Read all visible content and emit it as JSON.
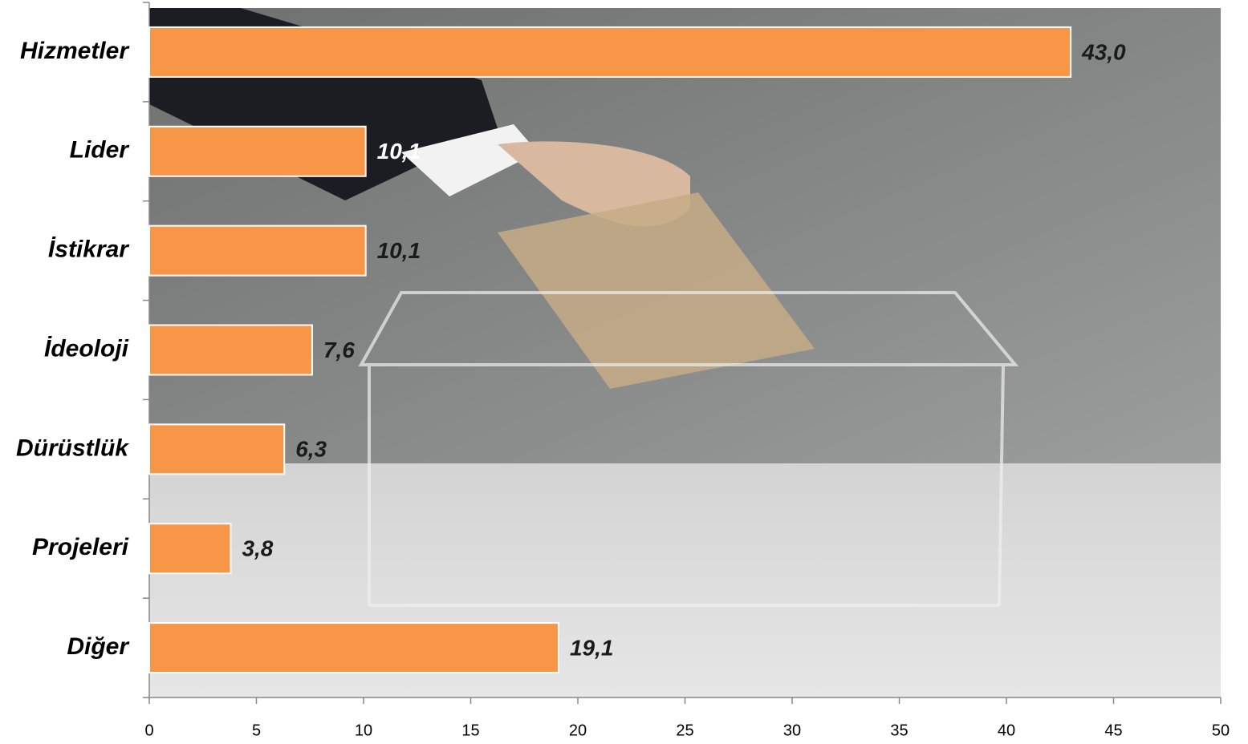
{
  "chart_data": {
    "type": "bar",
    "orientation": "horizontal",
    "categories": [
      "Hizmetler",
      "Lider",
      "İstikrar",
      "İdeoloji",
      "Dürüstlük",
      "Projeleri",
      "Diğer"
    ],
    "values": [
      43,
      10.1,
      10.1,
      7.6,
      6.3,
      3.8,
      19.1
    ],
    "value_labels": [
      "43,0",
      "10,1",
      "10,1",
      "7,6",
      "6,3",
      "3,8",
      "19,1"
    ],
    "value_label_colors": [
      "#1a1a1a",
      "#ffffff",
      "#1a1a1a",
      "#1a1a1a",
      "#1a1a1a",
      "#1a1a1a",
      "#1a1a1a"
    ],
    "color": "#f79646",
    "xlim": [
      0,
      50
    ],
    "xticks": [
      0,
      5,
      10,
      15,
      20,
      25,
      30,
      35,
      40,
      45,
      50
    ]
  }
}
